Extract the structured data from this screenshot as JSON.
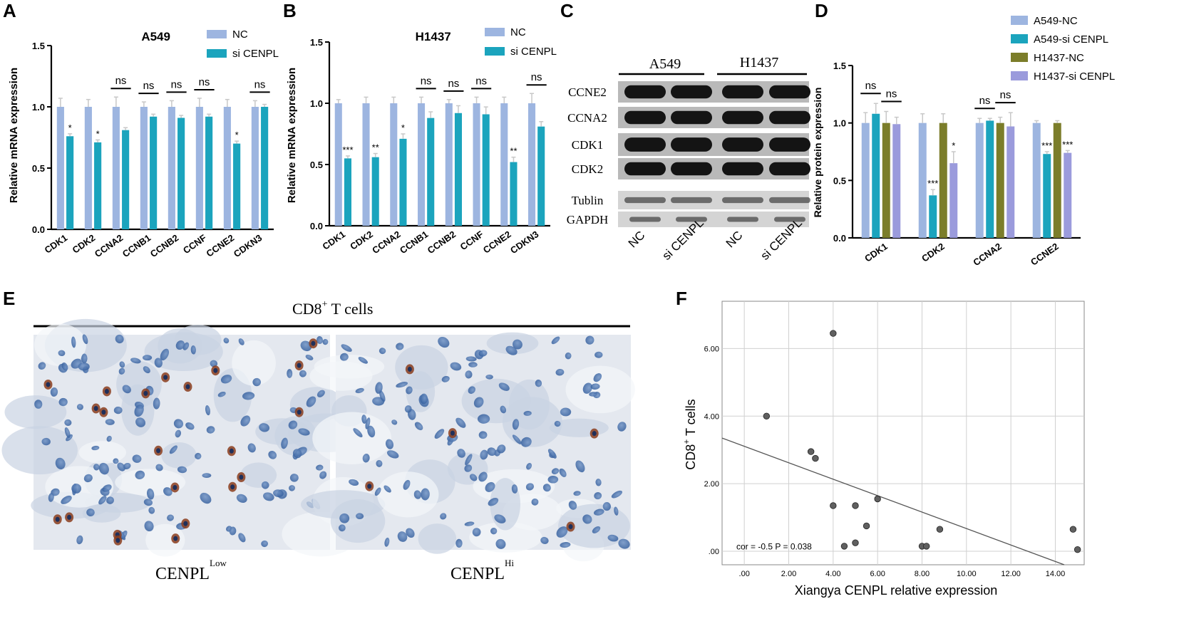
{
  "panels": {
    "A": "A",
    "B": "B",
    "C": "C",
    "D": "D",
    "E": "E",
    "F": "F"
  },
  "chart_data": [
    {
      "id": "A",
      "type": "bar",
      "title": "A549",
      "ylabel": "Relative mRNA expression",
      "ylim": [
        0,
        1.5
      ],
      "yticks": [
        "0.0",
        "0.5",
        "1.0",
        "1.5"
      ],
      "categories": [
        "CDK1",
        "CDK2",
        "CCNA2",
        "CCNB1",
        "CCNB2",
        "CCNF",
        "CCNE2",
        "CDKN3"
      ],
      "series": [
        {
          "name": "NC",
          "color": "#9db5e0",
          "values": [
            1.0,
            1.0,
            1.0,
            1.0,
            1.0,
            1.0,
            1.0,
            1.0
          ],
          "errors": [
            0.07,
            0.06,
            0.08,
            0.04,
            0.05,
            0.07,
            0.06,
            0.05
          ]
        },
        {
          "name": "si CENPL",
          "color": "#1ba4bd",
          "values": [
            0.76,
            0.71,
            0.81,
            0.92,
            0.91,
            0.92,
            0.7,
            1.0
          ],
          "errors": [
            0.02,
            0.02,
            0.02,
            0.02,
            0.02,
            0.02,
            0.02,
            0.02
          ]
        }
      ],
      "annotations": [
        "*",
        "*",
        "ns",
        "ns",
        "ns",
        "ns",
        "*",
        "ns"
      ]
    },
    {
      "id": "B",
      "type": "bar",
      "title": "H1437",
      "ylabel": "Relative mRNA expression",
      "ylim": [
        0,
        1.5
      ],
      "yticks": [
        "0.0",
        "0.5",
        "1.0",
        "1.5"
      ],
      "categories": [
        "CDK1",
        "CDK2",
        "CCNA2",
        "CCNB1",
        "CCNB2",
        "CCNF",
        "CCNE2",
        "CDKN3"
      ],
      "series": [
        {
          "name": "NC",
          "color": "#9db5e0",
          "values": [
            1.0,
            1.0,
            1.0,
            1.0,
            1.0,
            1.0,
            1.0,
            1.0
          ],
          "errors": [
            0.03,
            0.05,
            0.05,
            0.05,
            0.03,
            0.05,
            0.05,
            0.08
          ]
        },
        {
          "name": "si CENPL",
          "color": "#1ba4bd",
          "values": [
            0.55,
            0.56,
            0.71,
            0.88,
            0.92,
            0.91,
            0.52,
            0.81
          ],
          "errors": [
            0.02,
            0.03,
            0.04,
            0.05,
            0.06,
            0.06,
            0.04,
            0.04
          ]
        }
      ],
      "annotations": [
        "***",
        "**",
        "*",
        "ns",
        "ns",
        "ns",
        "**",
        "ns"
      ]
    },
    {
      "id": "D",
      "type": "bar",
      "title": "",
      "ylabel": "Relative protein expression",
      "ylim": [
        0,
        1.5
      ],
      "yticks": [
        "0.0",
        "0.5",
        "1.0",
        "1.5"
      ],
      "categories": [
        "CDK1",
        "CDK2",
        "CCNA2",
        "CCNE2"
      ],
      "series": [
        {
          "name": "A549-NC",
          "color": "#9db5e0",
          "values": [
            1.0,
            1.0,
            1.0,
            1.0
          ],
          "errors": [
            0.09,
            0.08,
            0.04,
            0.02
          ]
        },
        {
          "name": "A549-si CENPL",
          "color": "#1ba4bd",
          "values": [
            1.08,
            0.37,
            1.02,
            0.73
          ],
          "errors": [
            0.09,
            0.05,
            0.02,
            0.02
          ]
        },
        {
          "name": "H1437-NC",
          "color": "#7b7d2a",
          "values": [
            1.0,
            1.0,
            1.0,
            1.0
          ],
          "errors": [
            0.1,
            0.08,
            0.05,
            0.02
          ]
        },
        {
          "name": "H1437-si CENPL",
          "color": "#9b9bdc",
          "values": [
            0.99,
            0.65,
            0.97,
            0.74
          ],
          "errors": [
            0.06,
            0.1,
            0.12,
            0.02
          ]
        }
      ],
      "annotations": [
        {
          "category": 0,
          "pair": "A549",
          "text": "ns"
        },
        {
          "category": 0,
          "pair": "H1437",
          "text": "ns"
        },
        {
          "category": 1,
          "pair": "A549",
          "text": "***"
        },
        {
          "category": 1,
          "pair": "H1437",
          "text": "*"
        },
        {
          "category": 2,
          "pair": "A549",
          "text": "ns"
        },
        {
          "category": 2,
          "pair": "H1437",
          "text": "ns"
        },
        {
          "category": 3,
          "pair": "A549",
          "text": "***"
        },
        {
          "category": 3,
          "pair": "H1437",
          "text": "***"
        }
      ]
    },
    {
      "id": "F",
      "type": "scatter",
      "title": "",
      "xlabel": "Xiangya CENPL relative expression",
      "ylabel_main": "CD8",
      "ylabel_sup": "+",
      "ylabel_tail": " T cells",
      "xlim": [
        -1.0,
        15.3
      ],
      "ylim": [
        -0.4,
        7.4
      ],
      "xticks": [
        ".00",
        "2.00",
        "4.00",
        "6.00",
        "8.00",
        "10.00",
        "12.00",
        "14.00"
      ],
      "yticks": [
        ".00",
        "2.00",
        "4.00",
        "6.00"
      ],
      "grid": true,
      "points": [
        {
          "x": 4.0,
          "y": 6.45
        },
        {
          "x": 1.0,
          "y": 4.0
        },
        {
          "x": 3.0,
          "y": 2.95
        },
        {
          "x": 3.2,
          "y": 2.75
        },
        {
          "x": 4.0,
          "y": 1.35
        },
        {
          "x": 5.0,
          "y": 1.35
        },
        {
          "x": 6.0,
          "y": 1.55
        },
        {
          "x": 5.5,
          "y": 0.75
        },
        {
          "x": 4.5,
          "y": 0.15
        },
        {
          "x": 5.0,
          "y": 0.25
        },
        {
          "x": 8.0,
          "y": 0.15
        },
        {
          "x": 8.2,
          "y": 0.15
        },
        {
          "x": 8.8,
          "y": 0.65
        },
        {
          "x": 14.8,
          "y": 0.65
        },
        {
          "x": 15.0,
          "y": 0.05
        }
      ],
      "regression": {
        "x0": -1.0,
        "y0": 3.35,
        "x1": 14.4,
        "y1": -0.4
      },
      "annotation": "cor = -0.5  P = 0.038"
    }
  ],
  "western": {
    "groups": [
      "A549",
      "H1437"
    ],
    "bands": [
      "CCNE2",
      "CCNA2",
      "CDK1",
      "CDK2",
      "Tublin",
      "GAPDH"
    ],
    "lanes": [
      "NC",
      "si CENPL",
      "NC",
      "si CENPL"
    ]
  },
  "ihc": {
    "header_main": "CD8",
    "header_sup": "+",
    "header_tail": " T cells",
    "left_label": "CENPL",
    "left_sup": "Low",
    "right_label": "CENPL",
    "right_sup": "Hi"
  }
}
